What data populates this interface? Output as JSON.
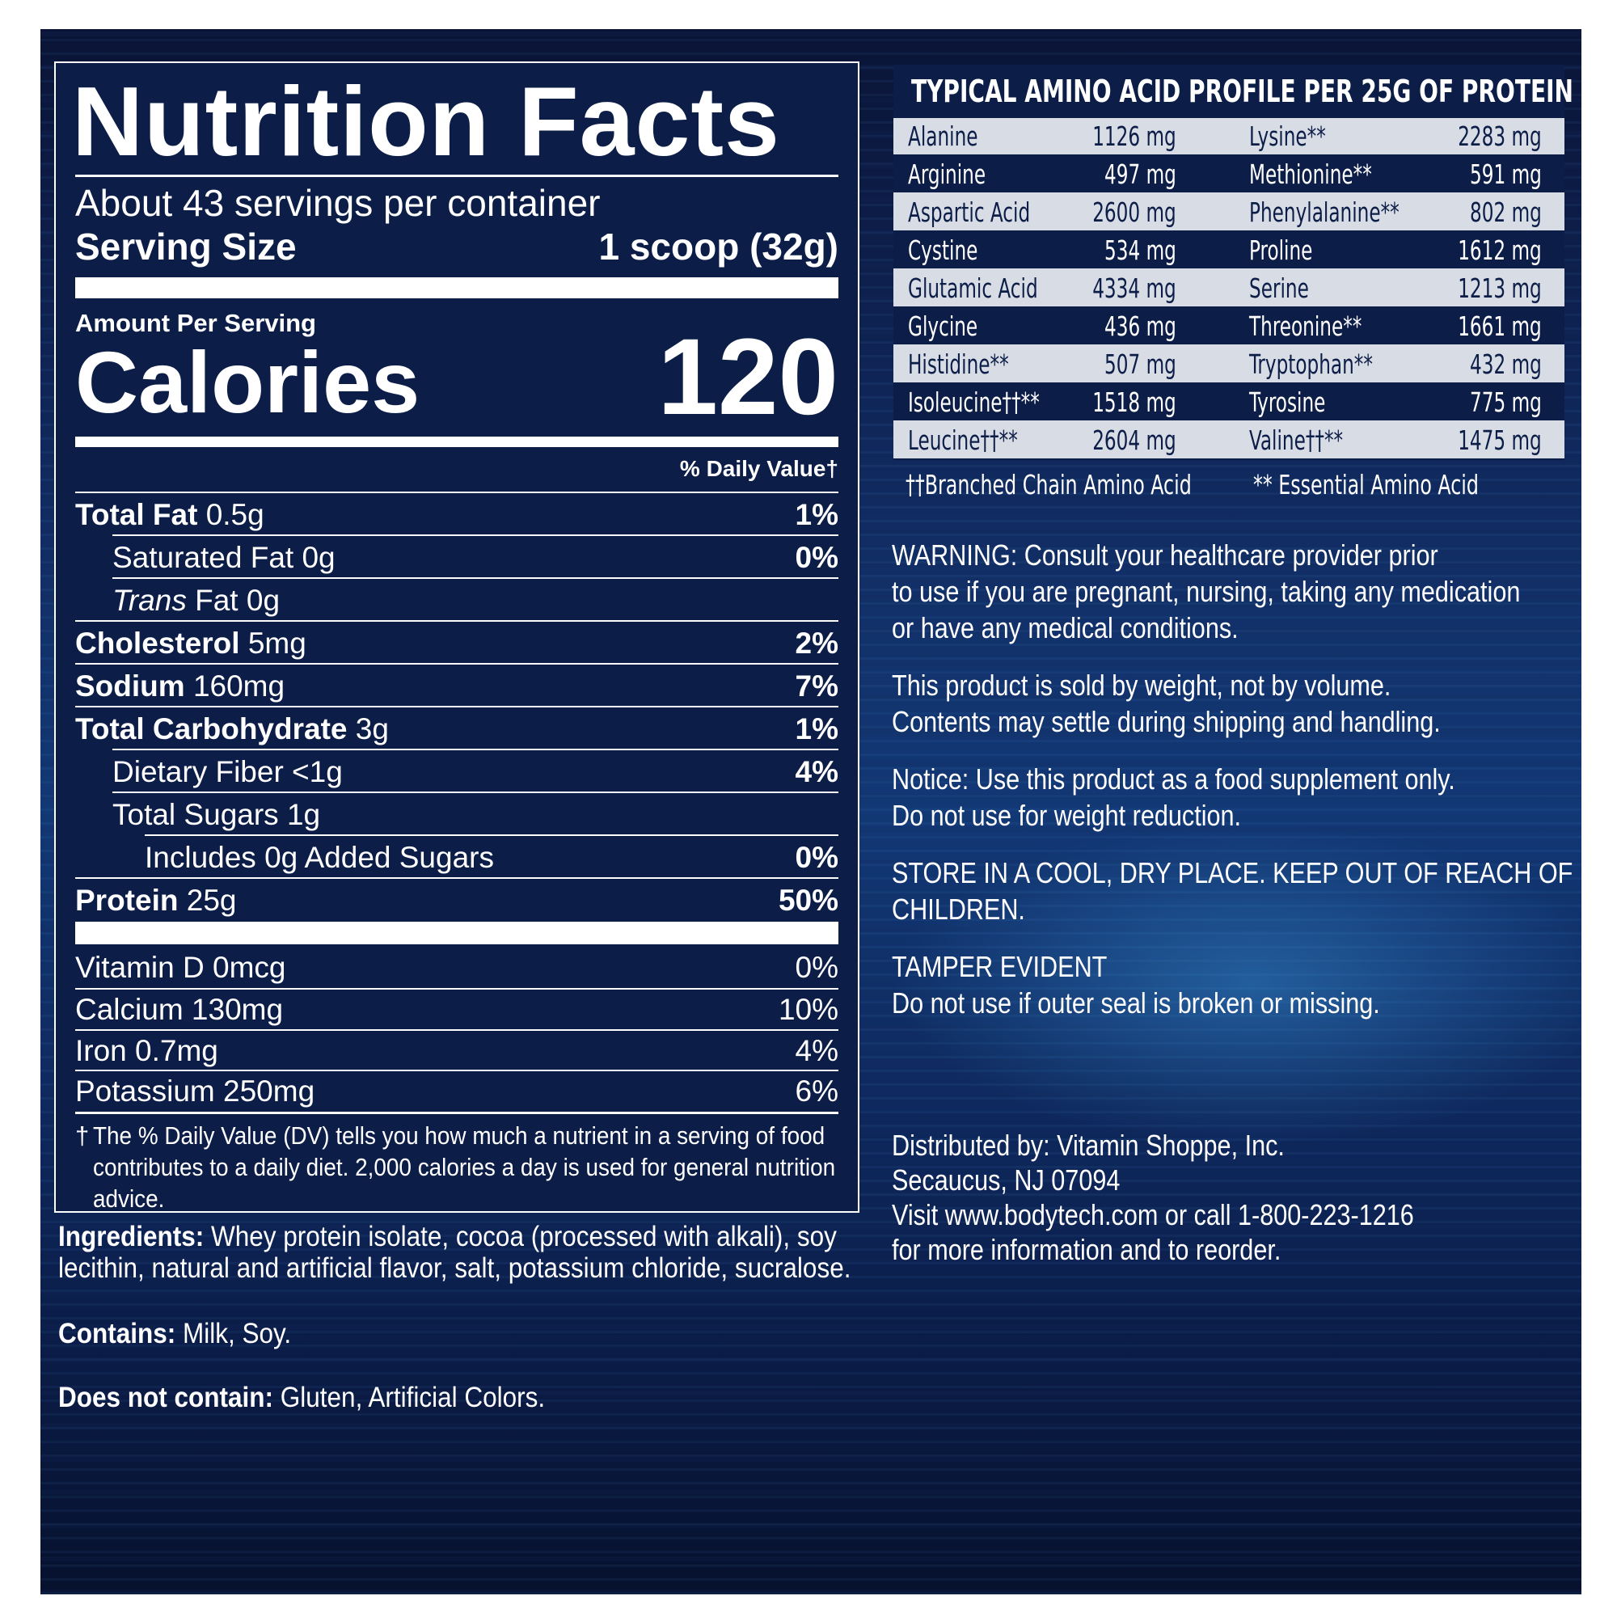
{
  "nutrition": {
    "title": "Nutrition Facts",
    "servings": "About 43 servings per container",
    "serving_size_label": "Serving Size",
    "serving_size_value": "1 scoop (32g)",
    "amount_per_serving": "Amount Per Serving",
    "calories_label": "Calories",
    "calories_value": "120",
    "dv_header": "% Daily Value†",
    "rows": [
      {
        "label": "Total Fat",
        "amount": " 0.5g",
        "pct": "1%"
      },
      {
        "label": "",
        "amount": "Saturated Fat 0g",
        "pct": "0%"
      },
      {
        "label": "",
        "amount_italic": "Trans",
        "amount": " Fat 0g",
        "pct": ""
      },
      {
        "label": "Cholesterol",
        "amount": " 5mg",
        "pct": "2%"
      },
      {
        "label": "Sodium",
        "amount": " 160mg",
        "pct": "7%"
      },
      {
        "label": "Total Carbohydrate",
        "amount": " 3g",
        "pct": "1%"
      },
      {
        "label": "",
        "amount": "Dietary Fiber <1g",
        "pct": "4%"
      },
      {
        "label": "",
        "amount": "Total Sugars 1g",
        "pct": ""
      },
      {
        "label": "",
        "amount": "Includes 0g Added Sugars",
        "pct": "0%"
      },
      {
        "label": "Protein",
        "amount": " 25g",
        "pct": "50%"
      }
    ],
    "vitamins": [
      {
        "label": "Vitamin D 0mcg",
        "pct": "0%"
      },
      {
        "label": "Calcium 130mg",
        "pct": "10%"
      },
      {
        "label": "Iron 0.7mg",
        "pct": "4%"
      },
      {
        "label": "Potassium 250mg",
        "pct": "6%"
      }
    ],
    "footnote_mark": "†",
    "footnote": "The % Daily Value (DV) tells you how much a nutrient in a serving of food contributes to a daily diet. 2,000 calories a day is used for general nutrition advice."
  },
  "ingredients": {
    "label": "Ingredients:",
    "text": " Whey protein isolate, cocoa (processed with alkali), soy lecithin, natural and artificial flavor, salt, potassium chloride, sucralose.",
    "contains_label": "Contains:",
    "contains_text": " Milk, Soy.",
    "not_contain_label": "Does not contain:",
    "not_contain_text": " Gluten, Artificial Colors."
  },
  "amino": {
    "title": "TYPICAL AMINO ACID PROFILE PER 25G OF PROTEIN",
    "rows": [
      {
        "n1": "Alanine",
        "v1": "1126 mg",
        "n2": "Lysine**",
        "v2": "2283 mg"
      },
      {
        "n1": "Arginine",
        "v1": "497 mg",
        "n2": "Methionine**",
        "v2": "591 mg"
      },
      {
        "n1": "Aspartic Acid",
        "v1": "2600 mg",
        "n2": "Phenylalanine**",
        "v2": "802 mg"
      },
      {
        "n1": "Cystine",
        "v1": "534 mg",
        "n2": "Proline",
        "v2": "1612 mg"
      },
      {
        "n1": "Glutamic Acid",
        "v1": "4334 mg",
        "n2": "Serine",
        "v2": "1213 mg"
      },
      {
        "n1": "Glycine",
        "v1": "436 mg",
        "n2": "Threonine**",
        "v2": "1661 mg"
      },
      {
        "n1": "Histidine**",
        "v1": "507 mg",
        "n2": "Tryptophan**",
        "v2": "432 mg"
      },
      {
        "n1": "Isoleucine††**",
        "v1": "1518 mg",
        "n2": "Tyrosine",
        "v2": "775 mg"
      },
      {
        "n1": "Leucine††**",
        "v1": "2604 mg",
        "n2": "Valine††**",
        "v2": "1475 mg"
      }
    ],
    "legend_bcaa": "††Branched Chain Amino Acid",
    "legend_eaa": "** Essential Amino Acid"
  },
  "right_text": {
    "warning": [
      "WARNING: Consult your healthcare provider prior",
      "to use if you are pregnant, nursing, taking any medication",
      "or have any medical conditions."
    ],
    "weight": [
      "This product is sold by weight, not by volume.",
      "Contents may settle during shipping and handling."
    ],
    "notice": [
      "Notice: Use this product as a food supplement only.",
      "Do not use for weight reduction."
    ],
    "store": [
      "STORE IN A COOL, DRY PLACE. KEEP OUT OF REACH OF",
      "CHILDREN."
    ],
    "tamper": [
      "TAMPER EVIDENT",
      "Do not use if outer seal is broken or missing."
    ],
    "distributor": [
      "Distributed by: Vitamin Shoppe, Inc.",
      "Secaucus, NJ 07094",
      "Visit www.bodytech.com or call 1-800-223-1216",
      "for more information and to reorder."
    ]
  }
}
